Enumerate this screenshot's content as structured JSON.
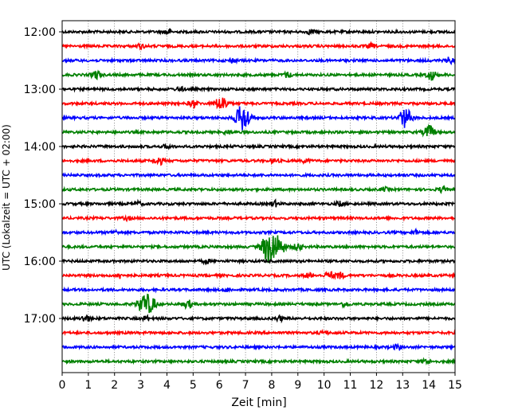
{
  "chart_data": {
    "type": "line",
    "title": "",
    "xlabel": "Zeit  [min]",
    "ylabel": "UTC (Lokalzeit = UTC + 02:00)",
    "xlim": [
      0,
      15
    ],
    "x_ticks": [
      0,
      1,
      2,
      3,
      4,
      5,
      6,
      7,
      8,
      9,
      10,
      11,
      12,
      13,
      14,
      15
    ],
    "y_tick_labels": [
      "12:00",
      "13:00",
      "14:00",
      "15:00",
      "16:00",
      "17:00"
    ],
    "grid": "vertical dotted lines at each minute",
    "trace_colors": [
      "#000000",
      "#ff0000",
      "#0000ff",
      "#008000"
    ],
    "series": [
      {
        "start": "12:00",
        "events": [
          [
            4.0,
            0.5
          ],
          [
            9.5,
            0.4
          ]
        ]
      },
      {
        "start": "12:15",
        "events": [
          [
            3.0,
            0.35
          ],
          [
            11.8,
            0.4
          ]
        ]
      },
      {
        "start": "12:30",
        "events": [
          [
            6.5,
            0.35
          ],
          [
            14.8,
            0.5
          ]
        ]
      },
      {
        "start": "12:45",
        "events": [
          [
            1.3,
            0.7
          ],
          [
            8.6,
            0.45
          ],
          [
            14.1,
            0.9
          ]
        ]
      },
      {
        "start": "13:00",
        "events": [
          [
            4.5,
            0.35
          ]
        ]
      },
      {
        "start": "13:15",
        "events": [
          [
            5.0,
            0.6
          ],
          [
            6.0,
            0.9
          ],
          [
            6.2,
            0.7
          ]
        ]
      },
      {
        "start": "13:30",
        "events": [
          [
            6.9,
            2.4
          ],
          [
            13.1,
            1.7
          ]
        ]
      },
      {
        "start": "13:45",
        "events": [
          [
            6.3,
            0.3
          ],
          [
            14.0,
            1.2
          ]
        ]
      },
      {
        "start": "14:00",
        "events": [
          [
            4.0,
            0.3
          ]
        ]
      },
      {
        "start": "14:15",
        "events": [
          [
            3.7,
            0.65
          ],
          [
            8.1,
            0.35
          ],
          [
            9.3,
            0.3
          ]
        ]
      },
      {
        "start": "14:30",
        "events": []
      },
      {
        "start": "14:45",
        "events": [
          [
            12.3,
            0.3
          ],
          [
            14.5,
            0.4
          ]
        ]
      },
      {
        "start": "15:00",
        "events": [
          [
            2.9,
            0.35
          ],
          [
            8.1,
            0.5
          ],
          [
            10.6,
            0.4
          ]
        ]
      },
      {
        "start": "15:15",
        "events": [
          [
            2.5,
            0.3
          ]
        ]
      },
      {
        "start": "15:30",
        "events": [
          [
            2.0,
            0.3
          ],
          [
            13.5,
            0.35
          ]
        ]
      },
      {
        "start": "15:45",
        "events": [
          [
            7.8,
            1.5
          ],
          [
            8.0,
            2.0
          ],
          [
            8.3,
            1.4
          ],
          [
            9.0,
            0.6
          ]
        ]
      },
      {
        "start": "16:00",
        "events": [
          [
            5.5,
            0.3
          ]
        ]
      },
      {
        "start": "16:15",
        "events": [
          [
            2.2,
            0.45
          ],
          [
            9.4,
            0.4
          ],
          [
            10.2,
            0.6
          ],
          [
            10.6,
            0.55
          ]
        ]
      },
      {
        "start": "16:30",
        "events": [
          [
            6.3,
            0.3
          ]
        ]
      },
      {
        "start": "16:45",
        "events": [
          [
            3.1,
            1.6
          ],
          [
            3.4,
            1.2
          ],
          [
            4.8,
            0.7
          ],
          [
            10.8,
            0.4
          ]
        ]
      },
      {
        "start": "17:00",
        "events": [
          [
            0.9,
            0.6
          ],
          [
            3.2,
            0.35
          ],
          [
            8.3,
            0.4
          ]
        ]
      },
      {
        "start": "17:15",
        "events": [
          [
            10.0,
            0.3
          ]
        ]
      },
      {
        "start": "17:30",
        "events": [
          [
            12.8,
            0.4
          ]
        ]
      },
      {
        "start": "17:45",
        "events": [
          [
            13.9,
            0.45
          ]
        ]
      }
    ]
  }
}
